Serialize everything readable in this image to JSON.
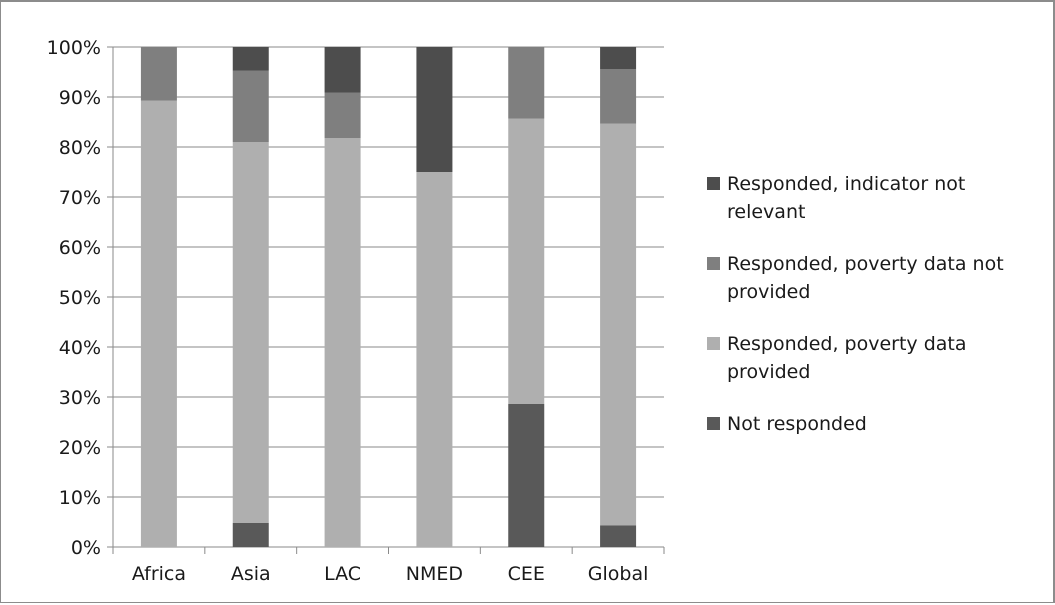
{
  "chart_data": {
    "type": "bar",
    "stacked": true,
    "percent_stacked": true,
    "categories": [
      "Africa",
      "Asia",
      "LAC",
      "NMED",
      "CEE",
      "Global"
    ],
    "y_ticks": [
      "0%",
      "10%",
      "20%",
      "30%",
      "40%",
      "50%",
      "60%",
      "70%",
      "80%",
      "90%",
      "100%"
    ],
    "ylim": [
      0,
      100
    ],
    "grid": true,
    "legend_position": "right",
    "series": [
      {
        "name": "Not responded",
        "color": "#595959",
        "values": [
          0,
          4.8,
          0,
          0,
          28.6,
          4.3
        ]
      },
      {
        "name": "Responded, poverty data provided",
        "color": "#afafaf",
        "values": [
          89.3,
          76.2,
          81.8,
          75,
          57.1,
          80.4
        ]
      },
      {
        "name": "Responded, poverty data not provided",
        "color": "#7f7f7f",
        "values": [
          10.7,
          14.3,
          9.1,
          0,
          14.3,
          10.9
        ]
      },
      {
        "name": "Responded, indicator not relevant",
        "color": "#4d4d4d",
        "values": [
          0,
          4.7,
          9.1,
          25,
          0,
          4.4
        ]
      }
    ],
    "legend": {
      "entries": [
        {
          "series_index": 3,
          "lines": [
            "Responded, indicator not",
            "relevant"
          ]
        },
        {
          "series_index": 2,
          "lines": [
            "Responded, poverty data not",
            "provided"
          ]
        },
        {
          "series_index": 1,
          "lines": [
            "Responded, poverty data",
            "provided"
          ]
        },
        {
          "series_index": 0,
          "lines": [
            "Not responded"
          ]
        }
      ]
    }
  }
}
